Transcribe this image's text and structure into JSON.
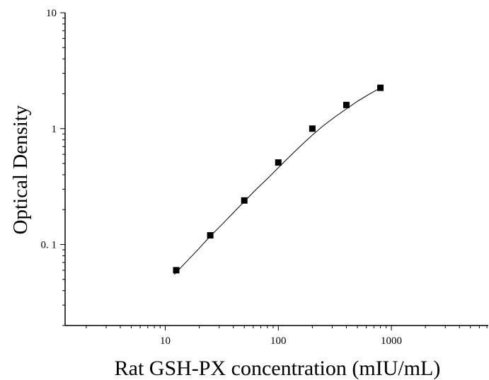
{
  "chart_data": {
    "type": "scatter",
    "title": "",
    "xlabel": "Rat GSH-PX concentration (mIU/mL)",
    "ylabel": "Optical Density",
    "xscale": "log",
    "yscale": "log",
    "xlim": [
      1.3,
      7200
    ],
    "ylim": [
      0.02,
      10
    ],
    "x_ticks": [
      10,
      100,
      1000
    ],
    "x_tick_labels": [
      "10",
      "100",
      "1000"
    ],
    "y_ticks": [
      0.1,
      1,
      10
    ],
    "y_tick_labels": [
      "0. 1",
      "1",
      "10"
    ],
    "grid": false,
    "legend": "none",
    "series": [
      {
        "marker": "square",
        "x": [
          12.5,
          25,
          50,
          100,
          200,
          400,
          800
        ],
        "y": [
          0.06,
          0.12,
          0.24,
          0.51,
          1.0,
          1.6,
          2.25
        ]
      }
    ],
    "fit_curve": {
      "x": [
        12,
        16,
        20,
        25,
        32,
        40,
        50,
        63,
        80,
        100,
        126,
        160,
        200,
        250,
        320,
        400,
        500,
        630,
        800
      ],
      "y": [
        0.055,
        0.074,
        0.093,
        0.118,
        0.15,
        0.188,
        0.235,
        0.296,
        0.37,
        0.46,
        0.575,
        0.72,
        0.88,
        1.06,
        1.27,
        1.48,
        1.72,
        1.97,
        2.25
      ]
    },
    "colors": {
      "marker": "#000000",
      "line": "#000000",
      "axis": "#000000"
    }
  }
}
